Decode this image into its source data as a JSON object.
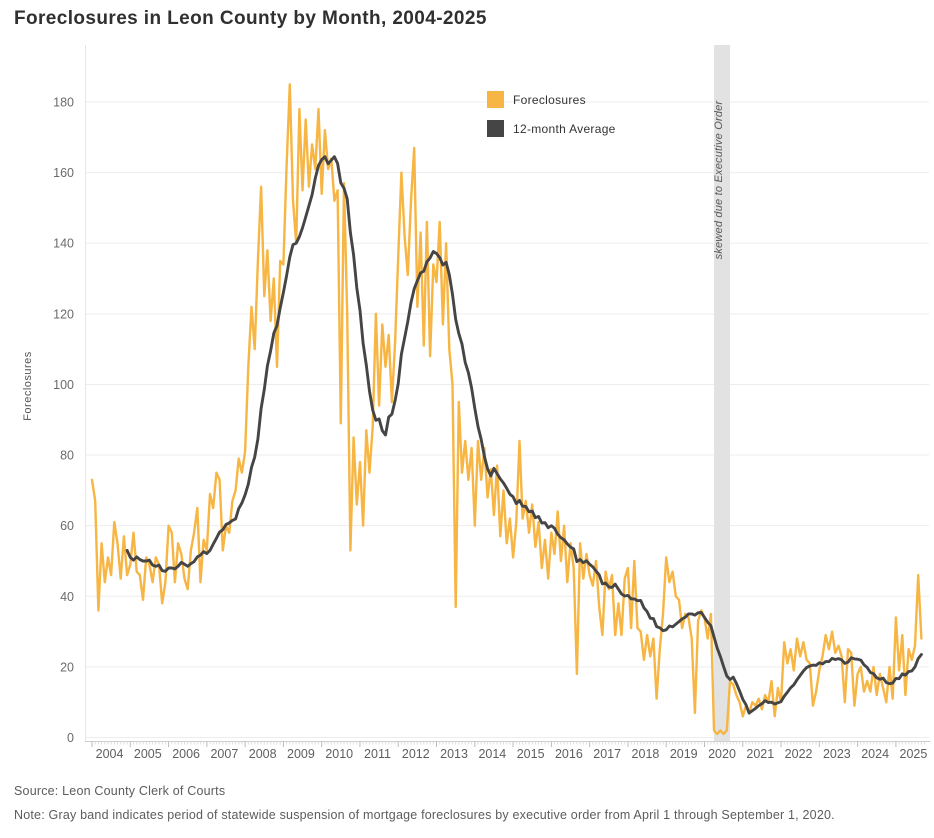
{
  "title": "Foreclosures in Leon County by Month, 2004-2025",
  "legend": [
    {
      "label": "Foreclosures",
      "color": "#F7B543"
    },
    {
      "label": "12-month Average",
      "color": "#454545"
    }
  ],
  "band": {
    "label": "skewed due to Executive Order",
    "color": "#e2e2e2",
    "period": "April 1 through September 1, 2020"
  },
  "footer": {
    "source": "Source: Leon County Clerk of Courts",
    "note": "Note: Gray band indicates period of statewide suspension of mortgage foreclosures by executive order from April 1 through September 1, 2020."
  },
  "chart_data": {
    "type": "line",
    "title": "Foreclosures in Leon County by Month, 2004-2025",
    "xlabel": "",
    "ylabel": "Foreclosures",
    "ylim": [
      0,
      190
    ],
    "y_ticks": [
      0,
      20,
      40,
      60,
      80,
      100,
      120,
      140,
      160,
      180
    ],
    "x_tick_years": [
      2004,
      2005,
      2006,
      2007,
      2008,
      2009,
      2010,
      2011,
      2012,
      2013,
      2014,
      2015,
      2016,
      2017,
      2018,
      2019,
      2020,
      2021,
      2022,
      2023,
      2024,
      2025
    ],
    "x_start": {
      "year": 2004,
      "month": 1
    },
    "x_end": {
      "year": 2025,
      "month": 9
    },
    "grid": "horizontal",
    "legend_position": "top-center-inside",
    "band_month_indices": [
      195,
      200
    ],
    "series": [
      {
        "name": "Foreclosures",
        "color": "#F7B543",
        "values": [
          73,
          67,
          36,
          55,
          44,
          51,
          46,
          61,
          55,
          45,
          57,
          46,
          49,
          58,
          47,
          46,
          39,
          51,
          49,
          44,
          51,
          49,
          38,
          44,
          60,
          58,
          44,
          55,
          52,
          45,
          42,
          53,
          58,
          65,
          44,
          56,
          53,
          69,
          65,
          75,
          73,
          53,
          60,
          58,
          67,
          70,
          79,
          75,
          81,
          105,
          122,
          110,
          135,
          156,
          125,
          138,
          118,
          130,
          105,
          135,
          134,
          162,
          185,
          152,
          140,
          178,
          155,
          175,
          156,
          168,
          161,
          178,
          154,
          172,
          161,
          164,
          152,
          155,
          89,
          157,
          120,
          53,
          85,
          66,
          78,
          60,
          87,
          75,
          88,
          120,
          94,
          117,
          105,
          114,
          95,
          112,
          136,
          160,
          142,
          131,
          152,
          167,
          122,
          143,
          111,
          146,
          108,
          134,
          129,
          146,
          117,
          140,
          110,
          100,
          37,
          95,
          75,
          84,
          73,
          82,
          60,
          84,
          73,
          82,
          68,
          76,
          63,
          77,
          57,
          70,
          55,
          62,
          51,
          61,
          84,
          62,
          67,
          58,
          66,
          54,
          61,
          48,
          56,
          45,
          58,
          52,
          64,
          50,
          60,
          44,
          55,
          48,
          18,
          55,
          45,
          52,
          46,
          43,
          50,
          37,
          29,
          47,
          42,
          46,
          29,
          38,
          29,
          45,
          48,
          31,
          50,
          31,
          30,
          22,
          29,
          23,
          28,
          11,
          25,
          35,
          51,
          44,
          47,
          40,
          39,
          31,
          35,
          34,
          28,
          7,
          33,
          36,
          34,
          28,
          35,
          2,
          1,
          2,
          1,
          2,
          16,
          15,
          12,
          10,
          6,
          9,
          7,
          10,
          9,
          11,
          8,
          12,
          10,
          16,
          6,
          14,
          10,
          27,
          21,
          25,
          19,
          28,
          23,
          27,
          22,
          21,
          9,
          13,
          19,
          23,
          29,
          25,
          30,
          24,
          26,
          23,
          10,
          25,
          24,
          9,
          18,
          20,
          13,
          16,
          13,
          20,
          12,
          18,
          14,
          10,
          20,
          11,
          34,
          19,
          29,
          12,
          25,
          22,
          26,
          46,
          28
        ]
      },
      {
        "name": "12-month Average",
        "color": "#454545",
        "derived": "trailing_12_month_mean_of_series_0"
      }
    ]
  }
}
